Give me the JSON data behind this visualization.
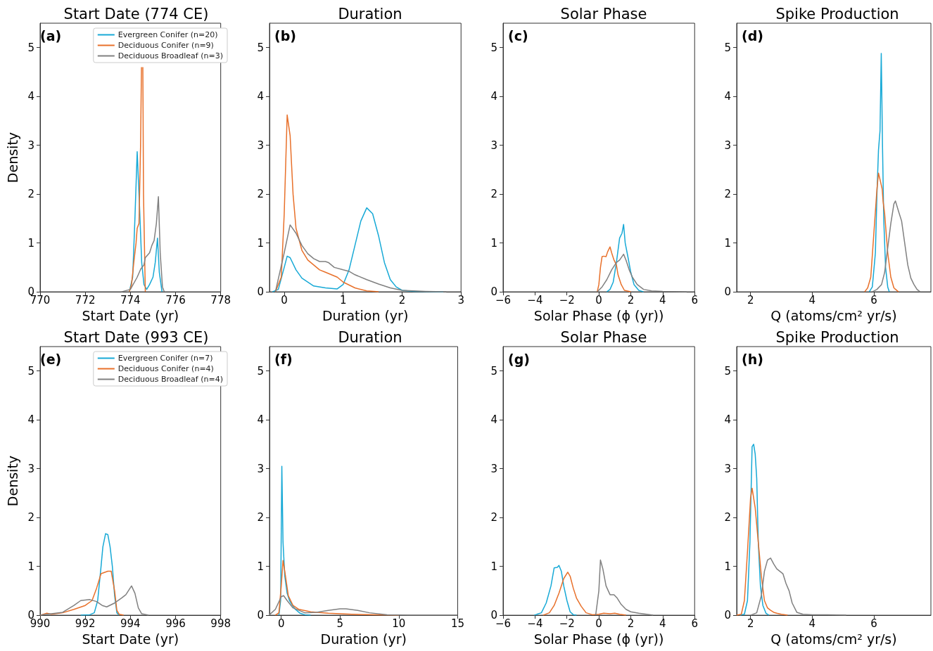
{
  "chart_data": [
    {
      "type": "line",
      "title": "Start Date (774 CE)",
      "xlabel": "Start Date (yr)",
      "ylabel": "Density",
      "annotations": [
        "(a)"
      ],
      "xlim": [
        770,
        778
      ],
      "xticks": [
        770,
        772,
        774,
        776,
        778
      ],
      "ylim": [
        0,
        5.5
      ],
      "yticks": [
        0,
        1,
        2,
        3,
        4,
        5
      ],
      "legend": "top right",
      "series": [
        {
          "name": "Evergreen Conifer (n=20)",
          "color": "#17a9d6",
          "x": [
            773.95,
            774.1,
            774.2,
            774.3,
            774.4,
            774.5,
            774.6,
            774.72,
            774.85,
            775.0,
            775.1,
            775.2,
            775.28,
            775.4
          ],
          "values": [
            0,
            0.3,
            1.5,
            2.87,
            1.8,
            0.6,
            0.15,
            0.05,
            0.15,
            0.3,
            0.6,
            1.1,
            0.4,
            0
          ]
        },
        {
          "name": "Deciduous Conifer (n=9)",
          "color": "#e8702a",
          "x": [
            773.95,
            774.05,
            774.15,
            774.25,
            774.3,
            774.38,
            774.45,
            774.49,
            774.52,
            774.55,
            774.58,
            774.66
          ],
          "values": [
            0,
            0.15,
            0.6,
            1.0,
            1.3,
            1.4,
            3.0,
            4.6,
            null,
            4.6,
            2.0,
            0
          ]
        },
        {
          "name": "Deciduous Broadleaf (n=3)",
          "color": "#808080",
          "x": [
            773.6,
            774.0,
            774.3,
            774.46,
            774.6,
            774.66,
            774.85,
            774.95,
            775.05,
            775.15,
            775.24,
            775.32,
            775.42,
            775.5
          ],
          "values": [
            0,
            0.05,
            0.3,
            0.47,
            0.55,
            0.7,
            0.8,
            0.95,
            1.05,
            1.4,
            1.95,
            0.8,
            0.1,
            0
          ]
        }
      ]
    },
    {
      "type": "line",
      "title": "Duration",
      "xlabel": "Duration (yr)",
      "annotations": [
        "(b)"
      ],
      "xlim": [
        -0.25,
        3
      ],
      "xticks": [
        0,
        1,
        2,
        3
      ],
      "ylim": [
        0,
        5.5
      ],
      "yticks": [
        0,
        1,
        2,
        3,
        4,
        5
      ],
      "series": [
        {
          "color": "#17a9d6",
          "x": [
            -0.2,
            -0.1,
            0,
            0.05,
            0.1,
            0.2,
            0.3,
            0.5,
            0.7,
            0.9,
            1.0,
            1.1,
            1.2,
            1.3,
            1.4,
            1.5,
            1.6,
            1.7,
            1.8,
            1.9,
            2.0,
            2.2,
            2.7
          ],
          "values": [
            0,
            0.05,
            0.5,
            0.73,
            0.7,
            0.45,
            0.28,
            0.12,
            0.08,
            0.06,
            0.15,
            0.45,
            0.95,
            1.45,
            1.72,
            1.6,
            1.15,
            0.6,
            0.25,
            0.1,
            0.03,
            0.01,
            0
          ]
        },
        {
          "color": "#e8702a",
          "x": [
            -0.15,
            -0.05,
            0,
            0.05,
            0.1,
            0.15,
            0.2,
            0.3,
            0.4,
            0.5,
            0.6,
            0.7,
            0.8,
            0.9,
            1.0,
            1.2,
            1.4,
            1.6
          ],
          "values": [
            0,
            0.3,
            1.6,
            3.62,
            3.2,
            2.0,
            1.3,
            0.85,
            0.65,
            0.55,
            0.45,
            0.4,
            0.35,
            0.3,
            0.2,
            0.08,
            0.02,
            0
          ]
        },
        {
          "color": "#808080",
          "x": [
            -0.15,
            0,
            0.1,
            0.2,
            0.3,
            0.4,
            0.5,
            0.6,
            0.7,
            0.75,
            0.85,
            1.0,
            1.1,
            1.2,
            1.4,
            1.6,
            1.8,
            2.0,
            2.4,
            2.75
          ],
          "values": [
            0,
            0.8,
            1.37,
            1.2,
            0.95,
            0.78,
            0.68,
            0.62,
            0.62,
            0.6,
            0.5,
            0.45,
            0.42,
            0.35,
            0.25,
            0.16,
            0.08,
            0.03,
            0.01,
            0
          ]
        }
      ]
    },
    {
      "type": "line",
      "title": "Solar Phase",
      "xlabel": "Solar Phase (ϕ (yr))",
      "annotations": [
        "(c)"
      ],
      "xlim": [
        -6,
        6
      ],
      "xticks": [
        {
          "value": -6,
          "label": "−6"
        },
        {
          "value": -4,
          "label": "−4"
        },
        {
          "value": -2,
          "label": "−2"
        },
        0,
        2,
        4,
        6
      ],
      "ylim": [
        0,
        5.5
      ],
      "yticks": [
        0,
        1,
        2,
        3,
        4,
        5
      ],
      "series": [
        {
          "color": "#17a9d6",
          "x": [
            0.5,
            0.7,
            0.9,
            1.1,
            1.3,
            1.45,
            1.55,
            1.65,
            1.8,
            2.0,
            2.2,
            2.5,
            2.8
          ],
          "values": [
            0,
            0.05,
            0.2,
            0.6,
            1.1,
            1.2,
            1.38,
            1.0,
            0.75,
            0.4,
            0.15,
            0.03,
            0
          ]
        },
        {
          "color": "#e8702a",
          "x": [
            -0.1,
            0,
            0.1,
            0.2,
            0.3,
            0.45,
            0.55,
            0.7,
            0.8,
            0.95,
            1.1,
            1.2,
            1.4,
            1.6,
            2.0
          ],
          "values": [
            0,
            0.15,
            0.5,
            0.72,
            0.73,
            0.72,
            0.82,
            0.92,
            0.8,
            0.65,
            0.55,
            0.35,
            0.15,
            0.03,
            0
          ]
        },
        {
          "color": "#808080",
          "x": [
            -0.1,
            0.2,
            0.5,
            0.8,
            1.1,
            1.3,
            1.55,
            1.7,
            1.9,
            2.1,
            2.4,
            2.8,
            3.3,
            4,
            5.5
          ],
          "values": [
            0,
            0.1,
            0.25,
            0.45,
            0.6,
            0.65,
            0.77,
            0.65,
            0.45,
            0.3,
            0.15,
            0.05,
            0.02,
            0.01,
            0
          ]
        }
      ]
    },
    {
      "type": "line",
      "title": "Spike Production",
      "xlabel": "Q (atoms/cm² yr/s)",
      "annotations": [
        "(d)"
      ],
      "xlim": [
        1.55,
        7.85
      ],
      "xticks": [
        2,
        4,
        6
      ],
      "ylim": [
        0,
        5.5
      ],
      "yticks": [
        0,
        1,
        2,
        3,
        4,
        5
      ],
      "series": [
        {
          "color": "#17a9d6",
          "x": [
            5.85,
            5.95,
            6.05,
            6.1,
            6.15,
            6.2,
            6.24,
            6.28,
            6.32,
            6.38,
            6.45,
            6.5
          ],
          "values": [
            0,
            0.1,
            0.8,
            2.0,
            2.9,
            3.3,
            4.88,
            3.0,
            1.5,
            0.5,
            0.1,
            0
          ]
        },
        {
          "color": "#e8702a",
          "x": [
            5.7,
            5.8,
            5.9,
            6.0,
            6.1,
            6.15,
            6.2,
            6.27,
            6.3,
            6.35,
            6.45,
            6.55,
            6.65,
            6.8
          ],
          "values": [
            0,
            0.08,
            0.3,
            1.2,
            2.1,
            2.43,
            2.3,
            2.1,
            1.85,
            1.6,
            0.8,
            0.3,
            0.08,
            0
          ]
        },
        {
          "color": "#808080",
          "x": [
            5.95,
            6.1,
            6.25,
            6.35,
            6.45,
            6.55,
            6.65,
            6.7,
            6.8,
            6.9,
            7.0,
            7.1,
            7.2,
            7.3,
            7.4,
            7.5
          ],
          "values": [
            0,
            0.05,
            0.15,
            0.4,
            0.9,
            1.4,
            1.8,
            1.86,
            1.65,
            1.45,
            1.0,
            0.55,
            0.28,
            0.15,
            0.05,
            0
          ]
        }
      ]
    },
    {
      "type": "line",
      "title": "Start Date (993 CE)",
      "xlabel": "Start Date (yr)",
      "ylabel": "Density",
      "annotations": [
        "(e)"
      ],
      "xlim": [
        990,
        998
      ],
      "xticks": [
        990,
        992,
        994,
        996,
        998
      ],
      "ylim": [
        0,
        5.5
      ],
      "yticks": [
        0,
        1,
        2,
        3,
        4,
        5
      ],
      "legend": "top right",
      "series": [
        {
          "name": "Evergreen Conifer (n=7)",
          "color": "#17a9d6",
          "x": [
            991.8,
            992.2,
            992.4,
            992.55,
            992.7,
            992.78,
            992.9,
            993.0,
            993.1,
            993.2,
            993.3,
            993.4,
            993.5
          ],
          "values": [
            0,
            0.01,
            0.05,
            0.3,
            1.0,
            1.4,
            1.67,
            1.65,
            1.4,
            1.0,
            0.4,
            0.05,
            0
          ]
        },
        {
          "name": "Deciduous Conifer (n=4)",
          "color": "#e8702a",
          "x": [
            990,
            990.3,
            990.5,
            991,
            991.5,
            992,
            992.3,
            992.5,
            992.7,
            993,
            993.15,
            993.3,
            993.4,
            993.5,
            993.7
          ],
          "values": [
            0,
            0.04,
            0.02,
            0.05,
            0.12,
            0.2,
            0.3,
            0.55,
            0.85,
            0.9,
            0.9,
            0.5,
            0.1,
            0.02,
            0
          ]
        },
        {
          "name": "Deciduous Broadleaf (n=4)",
          "color": "#808080",
          "x": [
            990,
            990.5,
            991,
            991.5,
            991.8,
            992.2,
            992.5,
            992.75,
            992.95,
            993.3,
            993.6,
            993.8,
            994.05,
            994.2,
            994.35,
            994.5,
            994.8
          ],
          "values": [
            0,
            0.03,
            0.06,
            0.2,
            0.3,
            0.32,
            0.28,
            0.2,
            0.17,
            0.25,
            0.35,
            0.42,
            0.6,
            0.45,
            0.15,
            0.03,
            0
          ]
        }
      ]
    },
    {
      "type": "line",
      "title": "Duration",
      "xlabel": "Duration (yr)",
      "annotations": [
        "(f)"
      ],
      "xlim": [
        -1,
        15
      ],
      "xticks": [
        0,
        5,
        10,
        15
      ],
      "ylim": [
        0,
        5.5
      ],
      "yticks": [
        0,
        1,
        2,
        3,
        4,
        5
      ],
      "series": [
        {
          "color": "#17a9d6",
          "x": [
            -0.2,
            -0.05,
            0.05,
            0.15,
            0.3,
            0.5,
            0.7,
            0.9,
            1.2,
            1.6,
            2,
            2.5
          ],
          "values": [
            0,
            0.3,
            3.05,
            1.5,
            0.8,
            0.45,
            0.3,
            0.22,
            0.12,
            0.04,
            0.01,
            0
          ]
        },
        {
          "color": "#e8702a",
          "x": [
            -0.5,
            -0.2,
            0,
            0.15,
            0.3,
            0.6,
            1.0,
            1.5,
            2.5,
            4,
            6,
            8,
            10
          ],
          "values": [
            0,
            0.05,
            0.6,
            1.12,
            0.9,
            0.4,
            0.2,
            0.12,
            0.07,
            0.04,
            0.02,
            0.01,
            0
          ]
        },
        {
          "color": "#808080",
          "x": [
            -1,
            -0.5,
            0,
            0.2,
            0.5,
            1,
            2,
            3,
            4,
            5,
            5.5,
            6.5,
            7.5,
            9,
            11,
            15
          ],
          "values": [
            0.01,
            0.12,
            0.38,
            0.4,
            0.3,
            0.15,
            0.05,
            0.06,
            0.1,
            0.13,
            0.13,
            0.1,
            0.05,
            0.01,
            0,
            0
          ]
        }
      ]
    },
    {
      "type": "line",
      "title": "Solar Phase",
      "xlabel": "Solar Phase (ϕ (yr))",
      "annotations": [
        "(g)"
      ],
      "xlim": [
        -6,
        6
      ],
      "xticks": [
        {
          "value": -6,
          "label": "−6"
        },
        {
          "value": -4,
          "label": "−4"
        },
        {
          "value": -2,
          "label": "−2"
        },
        0,
        2,
        4,
        6
      ],
      "ylim": [
        0,
        5.5
      ],
      "yticks": [
        0,
        1,
        2,
        3,
        4,
        5
      ],
      "series": [
        {
          "color": "#17a9d6",
          "x": [
            -4.05,
            -3.6,
            -3.3,
            -3.0,
            -2.8,
            -2.6,
            -2.5,
            -2.35,
            -2.2,
            -2.0,
            -1.8,
            -1.6,
            -1.4
          ],
          "values": [
            0,
            0.05,
            0.25,
            0.6,
            0.97,
            0.98,
            1.02,
            0.9,
            0.6,
            0.3,
            0.07,
            0.01,
            0
          ]
        },
        {
          "color": "#e8702a",
          "x": [
            -3.5,
            -3.1,
            -2.8,
            -2.5,
            -2.2,
            -1.95,
            -1.8,
            -1.6,
            -1.4,
            -1.1,
            -0.8,
            -0.4,
            0,
            0.3,
            0.7,
            1.0,
            1.3,
            1.7
          ],
          "values": [
            0,
            0.05,
            0.2,
            0.45,
            0.75,
            0.88,
            0.8,
            0.55,
            0.35,
            0.18,
            0.05,
            0.01,
            0.02,
            0.04,
            0.03,
            0.04,
            0.02,
            0
          ]
        },
        {
          "color": "#808080",
          "x": [
            -0.2,
            0,
            0.1,
            0.25,
            0.45,
            0.7,
            0.95,
            1.15,
            1.4,
            1.7,
            2.0,
            2.5,
            3.4
          ],
          "values": [
            0,
            0.5,
            1.13,
            0.95,
            0.6,
            0.42,
            0.42,
            0.35,
            0.22,
            0.12,
            0.07,
            0.04,
            0
          ]
        }
      ]
    },
    {
      "type": "line",
      "title": "Spike Production",
      "xlabel": "Q (atoms/cm² yr/s)",
      "annotations": [
        "(h)"
      ],
      "xlim": [
        1.55,
        7.85
      ],
      "xticks": [
        2,
        4,
        6
      ],
      "ylim": [
        0,
        5.5
      ],
      "yticks": [
        0,
        1,
        2,
        3,
        4,
        5
      ],
      "series": [
        {
          "color": "#17a9d6",
          "x": [
            1.65,
            1.8,
            1.9,
            1.98,
            2.05,
            2.1,
            2.15,
            2.2,
            2.25,
            2.32,
            2.4,
            2.5,
            2.6
          ],
          "values": [
            0,
            0.02,
            0.3,
            1.5,
            3.45,
            3.5,
            3.3,
            2.8,
            1.5,
            0.6,
            0.2,
            0.04,
            0
          ]
        },
        {
          "color": "#e8702a",
          "x": [
            1.55,
            1.7,
            1.8,
            1.9,
            2.0,
            2.05,
            2.15,
            2.25,
            2.35,
            2.45,
            2.55,
            2.65,
            2.75,
            2.85,
            3.0,
            3.2
          ],
          "values": [
            0,
            0.02,
            0.3,
            1.3,
            2.4,
            2.6,
            2.2,
            1.5,
            0.8,
            0.3,
            0.15,
            0.1,
            0.06,
            0.04,
            0.02,
            0
          ]
        },
        {
          "color": "#808080",
          "x": [
            2.0,
            2.2,
            2.35,
            2.45,
            2.55,
            2.65,
            2.75,
            2.85,
            2.95,
            3.05,
            3.15,
            3.25,
            3.35,
            3.5,
            3.7,
            4.0,
            4.5,
            5.1
          ],
          "values": [
            0,
            0.05,
            0.4,
            0.9,
            1.13,
            1.17,
            1.05,
            0.95,
            0.9,
            0.85,
            0.65,
            0.5,
            0.25,
            0.06,
            0.02,
            0.01,
            0.01,
            0
          ]
        }
      ]
    }
  ]
}
